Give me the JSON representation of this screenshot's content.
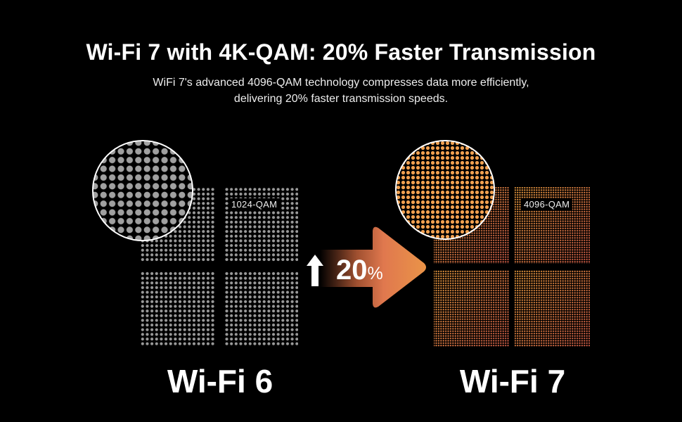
{
  "header": {
    "title": "Wi-Fi 7 with 4K-QAM: 20% Faster Transmission",
    "subtitle_line1": "WiFi 7's advanced 4096-QAM technology compresses data more efficiently,",
    "subtitle_line2": "delivering 20% faster transmission speeds."
  },
  "left": {
    "label": "Wi-Fi 6",
    "qam": "1024-QAM",
    "dot_color": "#9a9a9a"
  },
  "right": {
    "label": "Wi-Fi 7",
    "qam": "4096-QAM",
    "dot_color_start": "#f0a040",
    "dot_color_end": "#d8604a"
  },
  "improvement": {
    "value": "20",
    "unit": "%",
    "icon": "arrow-up-icon",
    "arrow_color": "#e8864a"
  }
}
